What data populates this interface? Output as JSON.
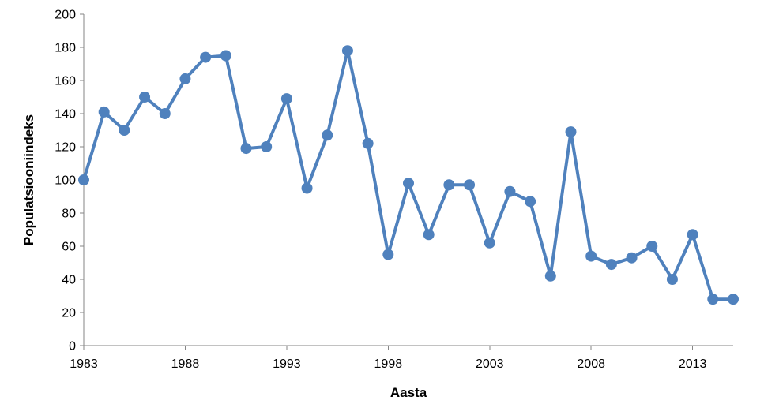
{
  "chart_data": {
    "type": "line",
    "title": "",
    "xlabel": "Aasta",
    "ylabel": "Populatsiooniindeks",
    "xlim": [
      1983,
      2015
    ],
    "ylim": [
      0,
      200
    ],
    "y_ticks": [
      0,
      20,
      40,
      60,
      80,
      100,
      120,
      140,
      160,
      180,
      200
    ],
    "x_ticks": [
      1983,
      1988,
      1993,
      1998,
      2003,
      2008,
      2013
    ],
    "y_tick_labels": [
      "0",
      "20",
      "40",
      "60",
      "80",
      "100",
      "120",
      "140",
      "160",
      "180",
      "200"
    ],
    "x_tick_labels": [
      "1983",
      "1988",
      "1993",
      "1998",
      "2003",
      "2008",
      "2013"
    ],
    "grid": false,
    "legend": "none",
    "color": "#4F81BD",
    "series": [
      {
        "x": [
          1983,
          1984,
          1985,
          1986,
          1987,
          1988,
          1989,
          1990,
          1991,
          1992,
          1993,
          1994,
          1995,
          1996,
          1997,
          1998,
          1999,
          2000,
          2001,
          2002,
          2003,
          2004,
          2005,
          2006,
          2007,
          2008,
          2009,
          2010,
          2011,
          2012,
          2013,
          2014,
          2015
        ],
        "values": [
          100,
          141,
          130,
          150,
          140,
          161,
          174,
          175,
          119,
          120,
          149,
          95,
          127,
          178,
          122,
          55,
          98,
          67,
          97,
          97,
          62,
          93,
          87,
          42,
          129,
          54,
          49,
          53,
          60,
          40,
          67,
          28,
          28
        ]
      }
    ]
  }
}
